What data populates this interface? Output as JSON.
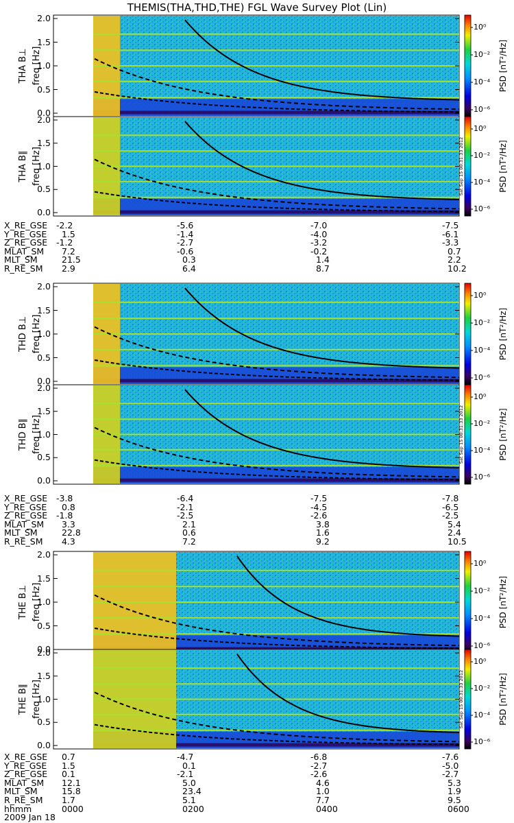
{
  "title": "THEMIS(THA,THD,THE) FGL Wave Survey Plot (Lin)",
  "freq_ticks": [
    "2.0",
    "1.5",
    "1.0",
    "0.5",
    "0.0"
  ],
  "colorbar": {
    "ticks": [
      "10⁰",
      "10⁻²",
      "10⁻⁴",
      "10⁻⁶"
    ],
    "label": "PSD [nT²/Hz]"
  },
  "stamp": "Sat Sep 15 00:31:33 2012",
  "date": "2009 Jan 18",
  "hhmm": {
    "label": "hhmm",
    "values": [
      "0000",
      "0200",
      "0400",
      "0600"
    ]
  },
  "probes": [
    {
      "panels": [
        {
          "ylabel": "THA B⊥",
          "yunit": "freq [Hz]"
        },
        {
          "ylabel": "THA B∥",
          "yunit": "freq [Hz]"
        }
      ],
      "ephem": [
        {
          "label": "X_RE_GSE",
          "values": [
            "-2.2",
            "-5.6",
            "-7.0",
            "-7.5"
          ]
        },
        {
          "label": "Y_RE_GSE",
          "values": [
            "1.5",
            "-1.4",
            "-4.0",
            "-6.1"
          ]
        },
        {
          "label": "Z_RE_GSE",
          "values": [
            "-1.2",
            "-2.7",
            "-3.2",
            "-3.3"
          ]
        },
        {
          "label": "MLAT_SM",
          "values": [
            "7.2",
            "-0.6",
            "-0.2",
            "0.7"
          ]
        },
        {
          "label": "MLT_SM",
          "values": [
            "21.5",
            "0.3",
            "1.4",
            "2.2"
          ]
        },
        {
          "label": "R_RE_SM",
          "values": [
            "2.9",
            "6.4",
            "8.7",
            "10.2"
          ]
        }
      ]
    },
    {
      "panels": [
        {
          "ylabel": "THD B⊥",
          "yunit": "freq [Hz]"
        },
        {
          "ylabel": "THD B∥",
          "yunit": "freq [Hz]"
        }
      ],
      "ephem": [
        {
          "label": "X_RE_GSE",
          "values": [
            "-3.8",
            "-6.4",
            "-7.5",
            "-7.8"
          ]
        },
        {
          "label": "Y_RE_GSE",
          "values": [
            "0.8",
            "-2.1",
            "-4.5",
            "-6.5"
          ]
        },
        {
          "label": "Z_RE_GSE",
          "values": [
            "-1.8",
            "-2.5",
            "-2.6",
            "-2.5"
          ]
        },
        {
          "label": "MLAT_SM",
          "values": [
            "3.3",
            "2.1",
            "3.8",
            "5.4"
          ]
        },
        {
          "label": "MLT_SM",
          "values": [
            "22.8",
            "0.6",
            "1.6",
            "2.4"
          ]
        },
        {
          "label": "R_RE_SM",
          "values": [
            "4.3",
            "7.2",
            "9.2",
            "10.5"
          ]
        }
      ]
    },
    {
      "panels": [
        {
          "ylabel": "THE B⊥",
          "yunit": "freq [Hz]"
        },
        {
          "ylabel": "THE B∥",
          "yunit": "freq [Hz]"
        }
      ],
      "ephem": [
        {
          "label": "X_RE_GSE",
          "values": [
            "0.7",
            "-4.7",
            "-6.8",
            "-7.6"
          ]
        },
        {
          "label": "Y_RE_GSE",
          "values": [
            "1.5",
            "0.1",
            "-2.7",
            "-5.0"
          ]
        },
        {
          "label": "Z_RE_GSE",
          "values": [
            "0.1",
            "-2.1",
            "-2.6",
            "-2.7"
          ]
        },
        {
          "label": "MLAT_SM",
          "values": [
            "12.1",
            "5.0",
            "4.6",
            "5.3"
          ]
        },
        {
          "label": "MLT_SM",
          "values": [
            "15.8",
            "23.4",
            "1.0",
            "1.9"
          ]
        },
        {
          "label": "R_RE_SM",
          "values": [
            "1.7",
            "5.1",
            "7.7",
            "9.5"
          ]
        }
      ]
    }
  ],
  "chart_data": {
    "type": "heatmap",
    "title": "THEMIS(THA,THD,THE) FGL Wave Survey Plot (Lin)",
    "xlabel": "hhmm",
    "x_ticks": [
      "0000",
      "0200",
      "0400",
      "0600"
    ],
    "ylabel": "freq [Hz]",
    "ylim": [
      0,
      2.0
    ],
    "colorscale": "log PSD [nT²/Hz], 10⁻⁶ to 10¹ (black-blue-cyan-green-yellow-red)",
    "grid": false,
    "panels": [
      {
        "name": "THA B⊥"
      },
      {
        "name": "THA B∥"
      },
      {
        "name": "THD B⊥"
      },
      {
        "name": "THD B∥"
      },
      {
        "name": "THE B⊥"
      },
      {
        "name": "THE B∥"
      }
    ]
  }
}
